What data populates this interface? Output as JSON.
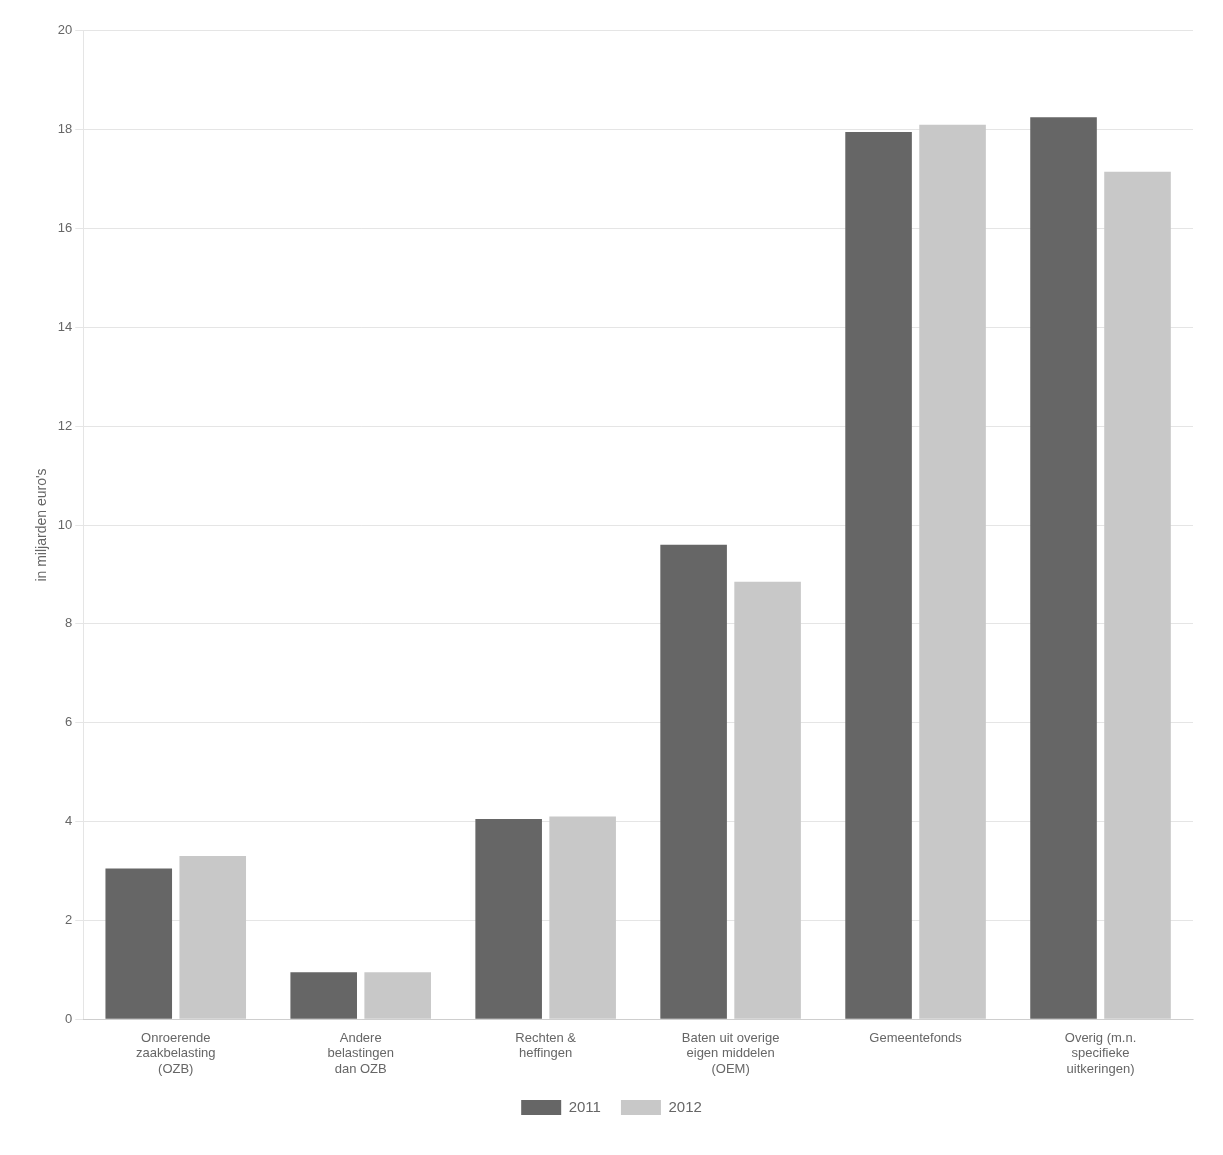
{
  "chart_data": {
    "type": "bar",
    "ylabel": "in miljarden euro's",
    "categories": [
      "Onroerende\nzaakbelasting\n(OZB)",
      "Andere\nbelastingen\ndan OZB",
      "Rechten &\nheffingen",
      "Baten uit overige\neigen middelen\n(OEM)",
      "Gemeentefonds",
      "Overig (m.n.\nspecifieke\nuitkeringen)"
    ],
    "series": [
      {
        "name": "2011",
        "color": "#666666",
        "values": [
          3.05,
          0.95,
          4.05,
          9.6,
          17.95,
          18.25
        ]
      },
      {
        "name": "2012",
        "color": "#c8c8c8",
        "values": [
          3.3,
          0.95,
          4.1,
          8.85,
          18.1,
          17.15
        ]
      }
    ],
    "ylim": [
      0,
      20
    ],
    "yticks": [
      0,
      2,
      4,
      6,
      8,
      10,
      12,
      14,
      16,
      18,
      20
    ],
    "grid": "y",
    "legend": "bottom"
  }
}
